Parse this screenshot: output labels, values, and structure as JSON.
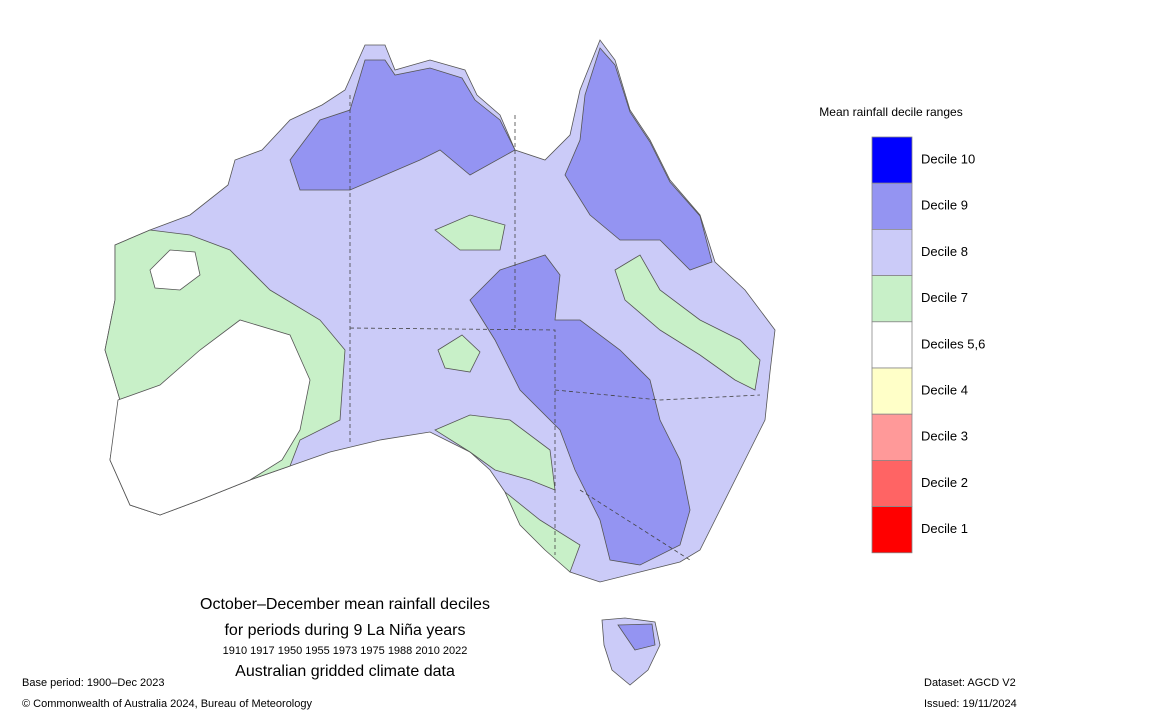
{
  "legend": {
    "title": "Mean rainfall decile ranges",
    "items": [
      {
        "label": "Decile 10",
        "color": "#0000ff"
      },
      {
        "label": "Decile 9",
        "color": "#9494f2"
      },
      {
        "label": "Decile 8",
        "color": "#cbcbf8"
      },
      {
        "label": "Decile 7",
        "color": "#c8f0c8"
      },
      {
        "label": "Deciles 5,6",
        "color": "#ffffff"
      },
      {
        "label": "Decile 4",
        "color": "#ffffc8"
      },
      {
        "label": "Decile 3",
        "color": "#ff9999"
      },
      {
        "label": "Decile 2",
        "color": "#ff6464"
      },
      {
        "label": "Decile 1",
        "color": "#ff0000"
      }
    ]
  },
  "caption": {
    "title": "October–December mean rainfall deciles",
    "subtitle": "for periods during 9 La Niña years",
    "years": "1910 1917 1950 1955 1973 1975 1988 2010 2022",
    "source": "Australian gridded climate data"
  },
  "footer": {
    "base_period": "Base period: 1900–Dec 2023",
    "copyright": "© Commonwealth of Australia 2024, Bureau of Meteorology",
    "dataset": "Dataset: AGCD V2",
    "issued": "Issued: 19/11/2024"
  }
}
